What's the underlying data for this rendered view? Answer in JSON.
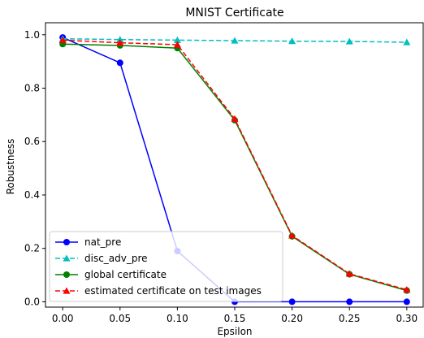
{
  "chart_data": {
    "type": "line",
    "title": "MNIST Certificate",
    "xlabel": "Epsilon",
    "ylabel": "Robustness",
    "x": [
      0.0,
      0.05,
      0.1,
      0.15,
      0.2,
      0.25,
      0.3
    ],
    "xlim": [
      -0.015,
      0.315
    ],
    "ylim": [
      -0.02,
      1.045
    ],
    "x_ticks": [
      "0.00",
      "0.05",
      "0.10",
      "0.15",
      "0.20",
      "0.25",
      "0.30"
    ],
    "y_ticks": [
      "0.0",
      "0.2",
      "0.4",
      "0.6",
      "0.8",
      "1.0"
    ],
    "x_tick_values": [
      0.0,
      0.05,
      0.1,
      0.15,
      0.2,
      0.25,
      0.3
    ],
    "y_tick_values": [
      0.0,
      0.2,
      0.4,
      0.6,
      0.8,
      1.0
    ],
    "grid": false,
    "legend_position": "lower-left",
    "series": [
      {
        "name": "nat_pre",
        "values": [
          0.99,
          0.895,
          0.19,
          0.0,
          0.0,
          0.0,
          0.0
        ],
        "color": "#0000ff",
        "marker": "circle",
        "linestyle": "solid"
      },
      {
        "name": "disc_adv_pre",
        "values": [
          0.985,
          0.982,
          0.98,
          0.978,
          0.976,
          0.975,
          0.972
        ],
        "color": "#00bfbf",
        "marker": "triangle",
        "linestyle": "dashed"
      },
      {
        "name": "global certificate",
        "values": [
          0.965,
          0.96,
          0.95,
          0.68,
          0.245,
          0.103,
          0.042
        ],
        "color": "#008000",
        "marker": "circle",
        "linestyle": "solid"
      },
      {
        "name": "estimated certificate on test images",
        "values": [
          0.98,
          0.97,
          0.963,
          0.685,
          0.248,
          0.105,
          0.045
        ],
        "color": "#ff0000",
        "marker": "triangle",
        "linestyle": "dashed"
      }
    ]
  }
}
